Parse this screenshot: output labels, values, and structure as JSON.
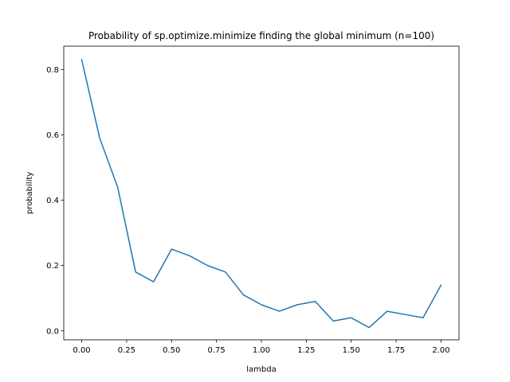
{
  "chart_data": {
    "type": "line",
    "title": "Probability of sp.optimize.minimize finding the global minimum (n=100)",
    "xlabel": "lambda",
    "ylabel": "probability",
    "xlim": [
      -0.1,
      2.1
    ],
    "ylim": [
      -0.0275,
      0.8715
    ],
    "xticks": [
      0.0,
      0.25,
      0.5,
      0.75,
      1.0,
      1.25,
      1.5,
      1.75,
      2.0
    ],
    "xtick_labels": [
      "0.00",
      "0.25",
      "0.50",
      "0.75",
      "1.00",
      "1.25",
      "1.50",
      "1.75",
      "2.00"
    ],
    "yticks": [
      0.0,
      0.2,
      0.4,
      0.6,
      0.8
    ],
    "ytick_labels": [
      "0.0",
      "0.2",
      "0.4",
      "0.6",
      "0.8"
    ],
    "grid": false,
    "series": [
      {
        "color": "#1f77b4",
        "x": [
          0.0,
          0.1,
          0.2,
          0.3,
          0.4,
          0.5,
          0.6,
          0.7,
          0.8,
          0.9,
          1.0,
          1.1,
          1.2,
          1.3,
          1.4,
          1.5,
          1.6,
          1.7,
          1.8,
          1.9,
          2.0
        ],
        "y": [
          0.83,
          0.59,
          0.44,
          0.18,
          0.15,
          0.25,
          0.23,
          0.2,
          0.18,
          0.11,
          0.08,
          0.06,
          0.08,
          0.09,
          0.03,
          0.04,
          0.01,
          0.06,
          0.05,
          0.04,
          0.14
        ]
      }
    ]
  }
}
